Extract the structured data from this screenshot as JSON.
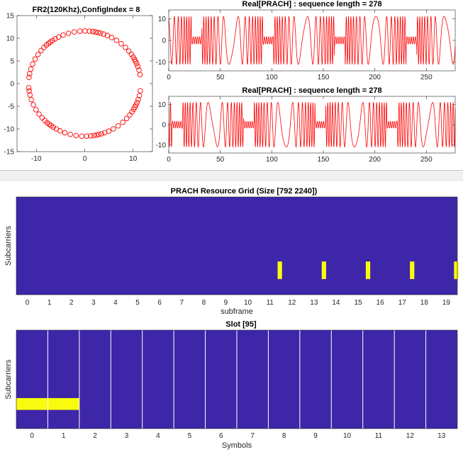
{
  "chart_data": [
    {
      "id": "constellation",
      "type": "scatter",
      "title": "FR2(120Khz),ConfigIndex = 8",
      "xlim": [
        -14,
        14
      ],
      "ylim": [
        -15,
        15
      ],
      "xticks": [
        -10,
        0,
        10
      ],
      "yticks": [
        15,
        10,
        5,
        0,
        -5,
        -10,
        -15
      ],
      "marker": "circle",
      "color": "#ff0000",
      "radius": 11.6,
      "num_points": 84
    },
    {
      "id": "real1",
      "type": "line",
      "title": "Real[PRACH] : sequence length = 278",
      "xlim": [
        0,
        278
      ],
      "ylim": [
        -14,
        14
      ],
      "xticks": [
        0,
        50,
        100,
        150,
        200,
        250
      ],
      "yticks": [
        10,
        0,
        -10
      ],
      "color": "#ff0000",
      "amplitude": 11
    },
    {
      "id": "real2",
      "type": "line",
      "title": "Real[PRACH] : sequence length = 278",
      "xlim": [
        0,
        278
      ],
      "ylim": [
        -14,
        14
      ],
      "xticks": [
        0,
        50,
        100,
        150,
        200,
        250
      ],
      "yticks": [
        10,
        0,
        -10
      ],
      "color": "#ff0000",
      "amplitude": 11
    },
    {
      "id": "grid",
      "type": "heatmap",
      "title": "PRACH Resource Grid (Size [792 2240])",
      "xlabel": "subframe",
      "ylabel": "Subcarriers",
      "xlim": [
        -0.5,
        19.5
      ],
      "xticks": [
        "0",
        "1",
        "2",
        "3",
        "4",
        "5",
        "6",
        "7",
        "8",
        "9",
        "10",
        "11",
        "12",
        "13",
        "14",
        "15",
        "16",
        "17",
        "18",
        "19"
      ],
      "background": "#3d26a8",
      "highlight": "#f9fb0e",
      "marks": [
        {
          "x": 11.45,
          "width": 0.2,
          "y_from": 0.16,
          "y_to": 0.34
        },
        {
          "x": 13.45,
          "width": 0.2,
          "y_from": 0.16,
          "y_to": 0.34
        },
        {
          "x": 15.45,
          "width": 0.2,
          "y_from": 0.16,
          "y_to": 0.34
        },
        {
          "x": 17.45,
          "width": 0.2,
          "y_from": 0.16,
          "y_to": 0.34
        },
        {
          "x": 19.45,
          "width": 0.2,
          "y_from": 0.16,
          "y_to": 0.34
        }
      ]
    },
    {
      "id": "slot",
      "type": "heatmap",
      "title": "Slot [95]",
      "xlabel": "Symbols",
      "ylabel": "Subcarriers",
      "xlim": [
        -0.5,
        13.5
      ],
      "xticks": [
        "0",
        "1",
        "2",
        "3",
        "4",
        "5",
        "6",
        "7",
        "8",
        "9",
        "10",
        "11",
        "12",
        "13"
      ],
      "background": "#3d26a8",
      "highlight": "#f9fb0e",
      "grid_lines": "#ffffff",
      "marks": [
        {
          "x_from": -0.5,
          "x_to": 1.5,
          "y_from": 0.19,
          "y_to": 0.31
        }
      ]
    }
  ]
}
